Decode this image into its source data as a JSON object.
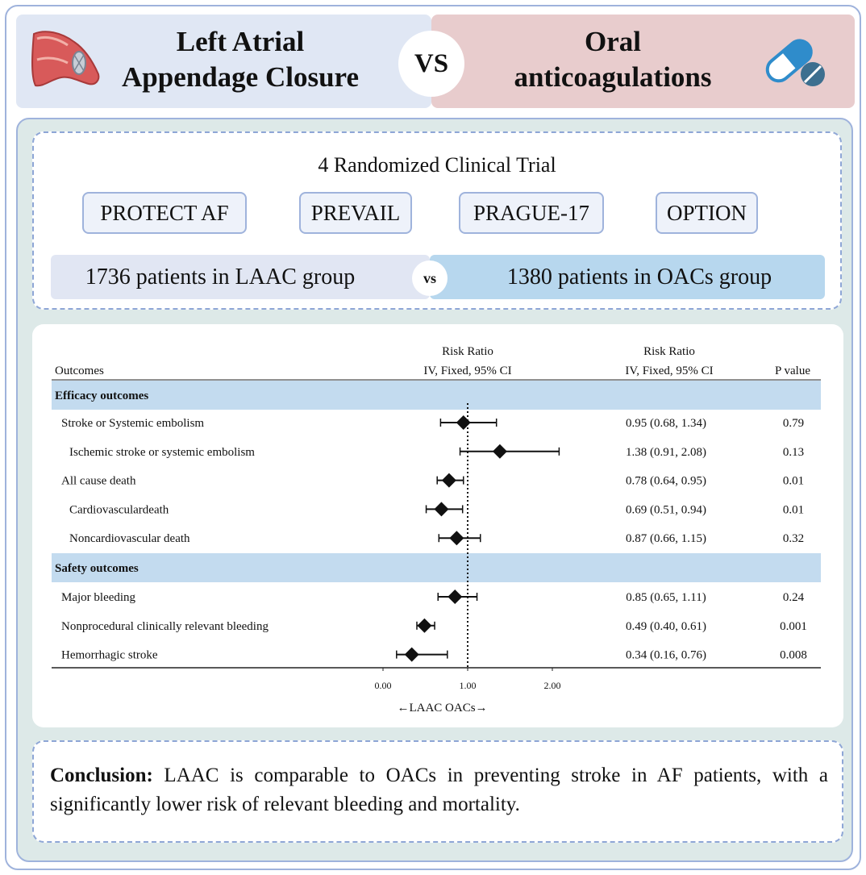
{
  "header": {
    "left_title_line1": "Left Atrial",
    "left_title_line2": "Appendage Closure",
    "vs": "VS",
    "right_title_line1": "Oral",
    "right_title_line2": "anticoagulations"
  },
  "trials": {
    "title": "4 Randomized Clinical Trial",
    "names": [
      "PROTECT AF",
      "PREVAIL",
      "PRAGUE-17",
      "OPTION"
    ],
    "laac_group": "1736 patients in LAAC group",
    "vs_small": "vs",
    "oac_group": "1380 patients in OACs group"
  },
  "chart_data": {
    "type": "forest",
    "col_outcomes": "Outcomes",
    "col_rr_line1": "Risk Ratio",
    "col_rr_line2": "IV, Fixed, 95% CI",
    "col_pvalue": "P value",
    "x_ticks": [
      "0.00",
      "1.00",
      "2.00"
    ],
    "xlim": [
      0,
      2
    ],
    "reference_line": 1.0,
    "x_axis_label": "←LAAC OACs→",
    "sections": [
      {
        "name": "Efficacy outcomes",
        "rows": [
          {
            "label": "Stroke or Systemic embolism",
            "indent": 1,
            "rr": 0.95,
            "lo": 0.68,
            "hi": 1.34,
            "ci_text": "0.95 (0.68, 1.34)",
            "p": "0.79"
          },
          {
            "label": "Ischemic stroke or systemic embolism",
            "indent": 2,
            "rr": 1.38,
            "lo": 0.91,
            "hi": 2.08,
            "ci_text": "1.38 (0.91, 2.08)",
            "p": "0.13"
          },
          {
            "label": "All cause death",
            "indent": 1,
            "rr": 0.78,
            "lo": 0.64,
            "hi": 0.95,
            "ci_text": "0.78 (0.64, 0.95)",
            "p": "0.01"
          },
          {
            "label": "Cardiovasculardeath",
            "indent": 2,
            "rr": 0.69,
            "lo": 0.51,
            "hi": 0.94,
            "ci_text": "0.69 (0.51, 0.94)",
            "p": "0.01"
          },
          {
            "label": "Noncardiovascular death",
            "indent": 2,
            "rr": 0.87,
            "lo": 0.66,
            "hi": 1.15,
            "ci_text": "0.87 (0.66, 1.15)",
            "p": "0.32"
          }
        ]
      },
      {
        "name": "Safety outcomes",
        "rows": [
          {
            "label": "Major bleeding",
            "indent": 1,
            "rr": 0.85,
            "lo": 0.65,
            "hi": 1.11,
            "ci_text": "0.85 (0.65, 1.11)",
            "p": "0.24"
          },
          {
            "label": "Nonprocedural clinically relevant bleeding",
            "indent": 1,
            "rr": 0.49,
            "lo": 0.4,
            "hi": 0.61,
            "ci_text": "0.49 (0.40, 0.61)",
            "p": "0.001"
          },
          {
            "label": "Hemorrhagic stroke",
            "indent": 1,
            "rr": 0.34,
            "lo": 0.16,
            "hi": 0.76,
            "ci_text": "0.34 (0.16, 0.76)",
            "p": "0.008"
          }
        ]
      }
    ]
  },
  "conclusion": {
    "label": "Conclusion:",
    "text": " LAAC is comparable to OACs in preventing stroke in AF patients, with a significantly lower risk of relevant bleeding and mortality."
  },
  "colors": {
    "header_left_bg": "#e0e7f4",
    "header_right_bg": "#e8cccd",
    "section_band": "#c3dbef",
    "panel_bg": "#dde9e8",
    "border_blue": "#9fb3dc"
  }
}
